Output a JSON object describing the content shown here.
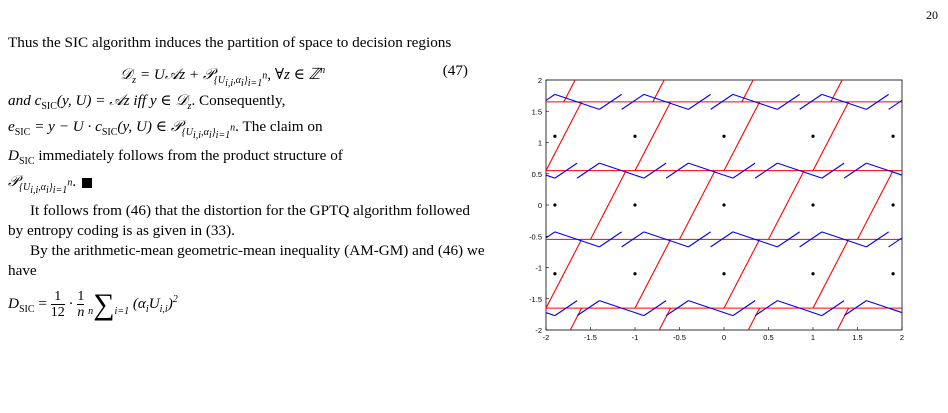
{
  "page_number": "20",
  "text": {
    "intro": "Thus the SIC algorithm induces the partition of space to decision regions",
    "eq47_number": "(47)",
    "and_c_start": "and  c",
    "and_c_rest": "(y, U)  =  𝒜z  iff  y  ∈  𝒟",
    "and_c_end": ". Consequently,",
    "esic_line": "= y − U · c",
    "claim_on": ". The claim on",
    "d_immediately": " immediately follows from the product structure of",
    "gptq_para": "It follows from (46) that the distortion for the GPTQ algorithm followed by entropy coding is as given in (33).",
    "amgm_para": "By the arithmetic-mean geometric-mean inequality (AM-GM) and (46) we have"
  },
  "chart_data": {
    "type": "lattice-partition-plot",
    "xlim": [
      -2,
      2
    ],
    "ylim": [
      -2,
      2
    ],
    "x_ticks": [
      "-2",
      "-1.5",
      "-1",
      "-0.5",
      "0",
      "0.5",
      "1",
      "1.5",
      "2"
    ],
    "y_ticks": [
      "2",
      "1.5",
      "1",
      "0.5",
      "0",
      "-0.5",
      "-1",
      "-1.5",
      "-2"
    ],
    "lattice_points": [
      [
        -1.9,
        1.1
      ],
      [
        -1.0,
        1.1
      ],
      [
        0.0,
        1.1
      ],
      [
        1.0,
        1.1
      ],
      [
        1.9,
        1.1
      ],
      [
        -1.9,
        0.0
      ],
      [
        -1.0,
        0.0
      ],
      [
        0.0,
        0.0
      ],
      [
        1.0,
        0.0
      ],
      [
        1.9,
        0.0
      ],
      [
        -1.9,
        -1.1
      ],
      [
        -1.0,
        -1.1
      ],
      [
        0.0,
        -1.1
      ],
      [
        1.0,
        -1.1
      ],
      [
        1.9,
        -1.1
      ]
    ],
    "red_horizontal_y": [
      1.65,
      0.55,
      -0.55,
      -1.65
    ],
    "red_color": "#ff0000",
    "blue_color": "#0000ff"
  }
}
